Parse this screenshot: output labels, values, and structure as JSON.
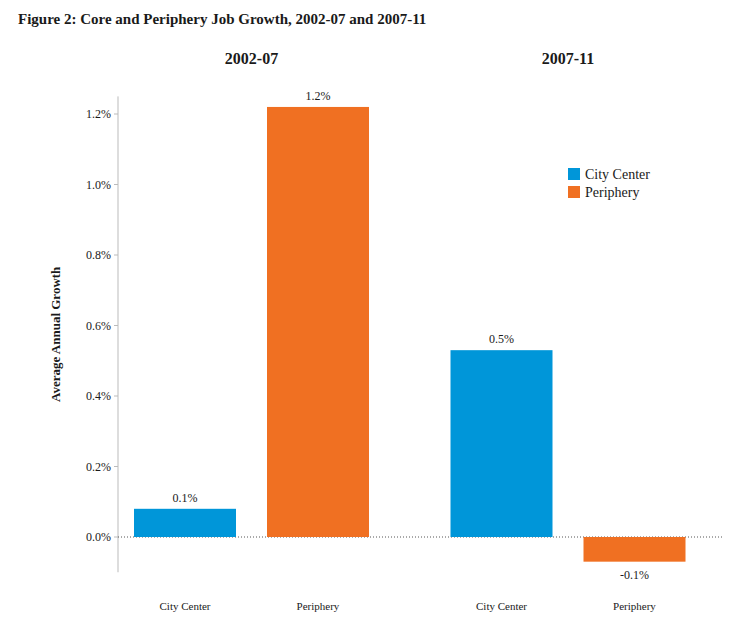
{
  "chart_data": {
    "type": "bar",
    "title": "Figure 2: Core and Periphery Job Growth, 2002-07 and 2007-11",
    "categories": [
      "2002-07",
      "2007-11"
    ],
    "series": [
      {
        "name": "City Center",
        "color": "#0096d9",
        "values": [
          0.08,
          0.53
        ],
        "value_labels": [
          "0.1%",
          "0.5%"
        ]
      },
      {
        "name": "Periphery",
        "color": "#f07022",
        "values": [
          1.22,
          -0.07
        ],
        "value_labels": [
          "1.2%",
          "-0.1%"
        ]
      }
    ],
    "y_label": "Average Annual Growth",
    "ylim": [
      -0.1,
      1.25
    ],
    "yticks": [
      {
        "value": 0,
        "label": "0.0%"
      },
      {
        "value": 0.2,
        "label": "0.2%"
      },
      {
        "value": 0.4,
        "label": "0.4%"
      },
      {
        "value": 0.6,
        "label": "0.6%"
      },
      {
        "value": 0.8,
        "label": "0.8%"
      },
      {
        "value": 1,
        "label": "1.0%"
      },
      {
        "value": 1.2,
        "label": "1.2%"
      }
    ],
    "data_labels": true,
    "grid": false,
    "legend": "upper right"
  }
}
